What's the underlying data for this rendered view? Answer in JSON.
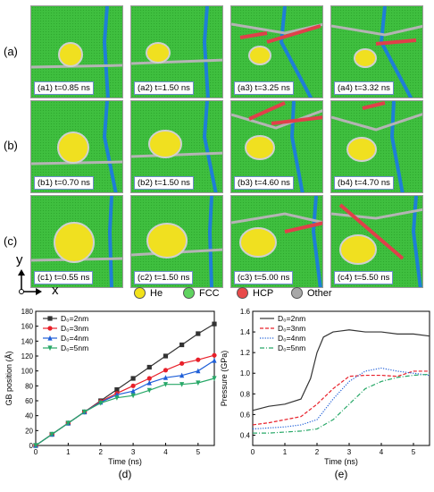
{
  "rows": [
    {
      "label": "(a)",
      "panels": [
        "(a1) t=0.85 ns",
        "(a2) t=1.50 ns",
        "(a3) t=3.25 ns",
        "(a4) t=3.32 ns"
      ]
    },
    {
      "label": "(b)",
      "panels": [
        "(b1) t=0.70 ns",
        "(b2) t=1.50 ns",
        "(b3) t=4.60 ns",
        "(b4) t=4.70 ns"
      ]
    },
    {
      "label": "(c)",
      "panels": [
        "(c1) t=0.55 ns",
        "(c2) t=1.50 ns",
        "(c3) t=5.00 ns",
        "(c4) t=5.50 ns"
      ]
    }
  ],
  "axes_indicator": {
    "y": "y",
    "x": "x"
  },
  "legend": [
    {
      "label": "He",
      "color": "#f2e21a"
    },
    {
      "label": "FCC",
      "color": "#5fd35f"
    },
    {
      "label": "HCP",
      "color": "#e84a4a"
    },
    {
      "label": "Other",
      "color": "#a8a8a8"
    }
  ],
  "colors": {
    "fcc": "#3fbf3f",
    "gb_blue": "#1e7fd6",
    "hcp_red": "#e0404a",
    "other_gray": "#b4b4b4",
    "he": "#f0e020"
  },
  "chart_data": [
    {
      "type": "line",
      "panel_label": "(d)",
      "xlabel": "Time (ns)",
      "ylabel": "GB position (Å)",
      "xlim": [
        0,
        5.5
      ],
      "ylim": [
        0,
        180
      ],
      "xticks": [
        "0",
        "1",
        "2",
        "3",
        "4",
        "5"
      ],
      "yticks": [
        "0",
        "20",
        "40",
        "60",
        "80",
        "100",
        "120",
        "140",
        "160",
        "180"
      ],
      "legend_position": "top-left",
      "series": [
        {
          "name": "D₀=2nm",
          "color": "#333333",
          "marker": "square",
          "x": [
            0,
            0.5,
            1,
            1.5,
            2,
            2.5,
            3,
            3.5,
            4,
            4.5,
            5,
            5.5
          ],
          "y": [
            0,
            15,
            30,
            45,
            60,
            75,
            90,
            105,
            120,
            135,
            150,
            163
          ]
        },
        {
          "name": "D₀=3nm",
          "color": "#e8202a",
          "marker": "circle",
          "x": [
            0,
            0.5,
            1,
            1.5,
            2,
            2.5,
            3,
            3.5,
            4,
            4.5,
            5,
            5.5
          ],
          "y": [
            0,
            15,
            30,
            45,
            59,
            70,
            80,
            90,
            101,
            110,
            115,
            121
          ]
        },
        {
          "name": "D₀=4nm",
          "color": "#1f5fd8",
          "marker": "triangle",
          "x": [
            0,
            0.5,
            1,
            1.5,
            2,
            2.5,
            3,
            3.5,
            4,
            4.5,
            5,
            5.5
          ],
          "y": [
            0,
            15,
            30,
            45,
            58,
            68,
            73,
            84,
            91,
            94,
            100,
            114
          ]
        },
        {
          "name": "D₀=5nm",
          "color": "#28a868",
          "marker": "triangle-down",
          "x": [
            0,
            0.5,
            1,
            1.5,
            2,
            2.5,
            3,
            3.5,
            4,
            4.5,
            5,
            5.5
          ],
          "y": [
            0,
            15,
            30,
            45,
            57,
            64,
            67,
            74,
            82,
            82,
            84,
            90
          ]
        }
      ]
    },
    {
      "type": "line",
      "panel_label": "(e)",
      "xlabel": "Time (ns)",
      "ylabel": "Pressure (GPa)",
      "xlim": [
        0,
        5.5
      ],
      "ylim": [
        0.3,
        1.6
      ],
      "xticks": [
        "0",
        "1",
        "2",
        "3",
        "4",
        "5"
      ],
      "yticks": [
        "0.4",
        "0.6",
        "0.8",
        "1.0",
        "1.2",
        "1.4",
        "1.6"
      ],
      "legend_position": "top-left",
      "series": [
        {
          "name": "D₀=2nm",
          "color": "#333333",
          "style": "solid",
          "x": [
            0,
            0.5,
            1,
            1.5,
            1.8,
            2,
            2.2,
            2.5,
            3,
            3.5,
            4,
            4.5,
            5,
            5.5
          ],
          "y": [
            0.64,
            0.68,
            0.7,
            0.75,
            0.95,
            1.2,
            1.35,
            1.4,
            1.42,
            1.4,
            1.4,
            1.38,
            1.38,
            1.36
          ]
        },
        {
          "name": "D₀=3nm",
          "color": "#e8202a",
          "style": "dashed",
          "x": [
            0,
            0.5,
            1,
            1.5,
            2,
            2.5,
            3,
            3.5,
            4,
            4.5,
            5,
            5.5
          ],
          "y": [
            0.5,
            0.52,
            0.55,
            0.58,
            0.7,
            0.85,
            0.97,
            0.98,
            0.98,
            0.97,
            1.02,
            1.02
          ]
        },
        {
          "name": "D₀=4nm",
          "color": "#1f5fd8",
          "style": "dotted",
          "x": [
            0,
            0.5,
            1,
            1.5,
            2,
            2.5,
            3,
            3.5,
            4,
            4.5,
            5,
            5.5
          ],
          "y": [
            0.46,
            0.47,
            0.48,
            0.5,
            0.55,
            0.75,
            0.92,
            1.02,
            1.05,
            1.02,
            1.0,
            0.98
          ]
        },
        {
          "name": "D₀=5nm",
          "color": "#28a868",
          "style": "dashdot",
          "x": [
            0,
            0.5,
            1,
            1.5,
            2,
            2.5,
            3,
            3.5,
            4,
            4.5,
            5,
            5.5
          ],
          "y": [
            0.42,
            0.42,
            0.43,
            0.44,
            0.46,
            0.55,
            0.7,
            0.85,
            0.92,
            0.96,
            0.98,
            0.99
          ]
        }
      ]
    }
  ]
}
